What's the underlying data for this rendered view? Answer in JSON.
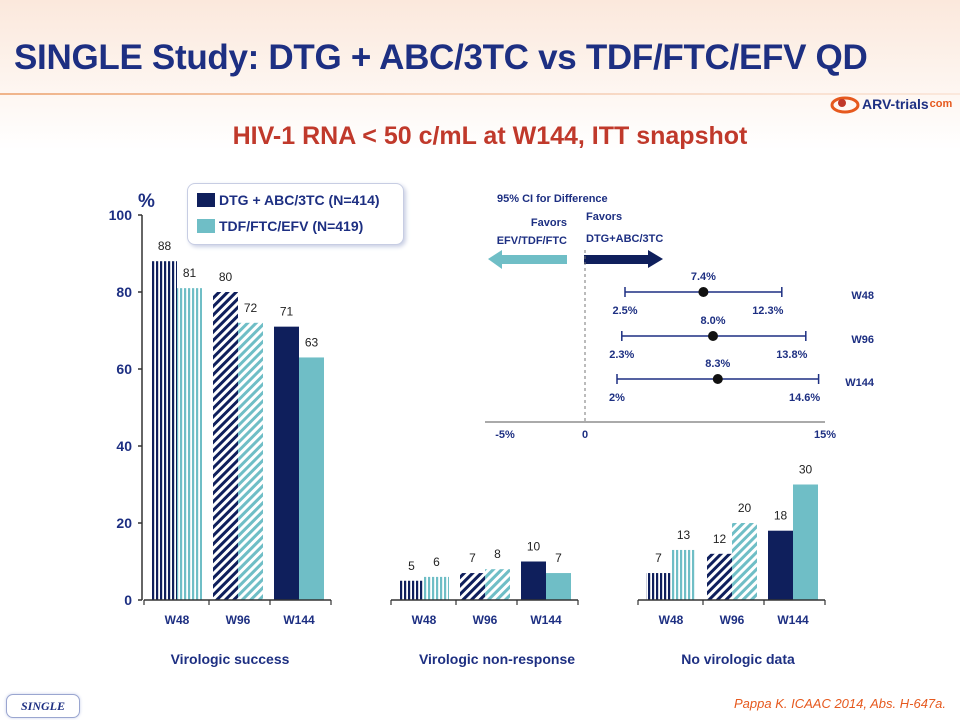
{
  "title": "SINGLE Study: DTG + ABC/3TC vs TDF/FTC/EFV QD",
  "subtitle": "HIV-1 RNA < 50 c/mL at W144, ITT snapshot",
  "logo": {
    "text": "ARV-trials",
    "suffix": "com"
  },
  "reference": "Pappa K. ICAAC 2014, Abs. H-647a.",
  "tag": "SINGLE",
  "colors": {
    "dtg": "#0f1f5c",
    "tdf": "#6fbec6",
    "title": "#1d2f82",
    "subtitle": "#c0392b"
  },
  "chart_data": [
    {
      "type": "bar",
      "ylabel": "%",
      "ylim": [
        0,
        100
      ],
      "yticks": [
        "0",
        "20",
        "40",
        "60",
        "80",
        "100"
      ],
      "legend": [
        "DTG + ABC/3TC (N=414)",
        "TDF/FTC/EFV (N=419)"
      ],
      "groups": [
        {
          "name": "Virologic success",
          "categories": [
            "W48",
            "W96",
            "W144"
          ],
          "dtg": [
            88,
            80,
            71
          ],
          "tdf": [
            81,
            72,
            63
          ]
        },
        {
          "name": "Virologic non-response",
          "categories": [
            "W48",
            "W96",
            "W144"
          ],
          "dtg": [
            5,
            7,
            10
          ],
          "tdf": [
            6,
            8,
            7
          ]
        },
        {
          "name": "No virologic data",
          "categories": [
            "W48",
            "W96",
            "W144"
          ],
          "dtg": [
            7,
            12,
            18
          ],
          "tdf": [
            13,
            20,
            30
          ]
        }
      ],
      "patterns": [
        "vertical-stripes",
        "diagonal-stripes",
        "solid"
      ]
    },
    {
      "type": "forest",
      "title": "95% CI for Difference",
      "favors_left": [
        "Favors",
        "EFV/TDF/FTC"
      ],
      "favors_right": [
        "Favors",
        "DTG+ABC/3TC"
      ],
      "xlim": [
        -5,
        15
      ],
      "xticks": [
        "-5%",
        "0",
        "15%"
      ],
      "rows": [
        {
          "label": "W48",
          "estimate": 7.4,
          "lower": 2.5,
          "upper": 12.3,
          "est_text": "7.4%",
          "lower_text": "2.5%",
          "upper_text": "12.3%"
        },
        {
          "label": "W96",
          "estimate": 8.0,
          "lower": 2.3,
          "upper": 13.8,
          "est_text": "8.0%",
          "lower_text": "2.3%",
          "upper_text": "13.8%"
        },
        {
          "label": "W144",
          "estimate": 8.3,
          "lower": 2.0,
          "upper": 14.6,
          "est_text": "8.3%",
          "lower_text": "2%",
          "upper_text": "14.6%"
        }
      ]
    }
  ]
}
